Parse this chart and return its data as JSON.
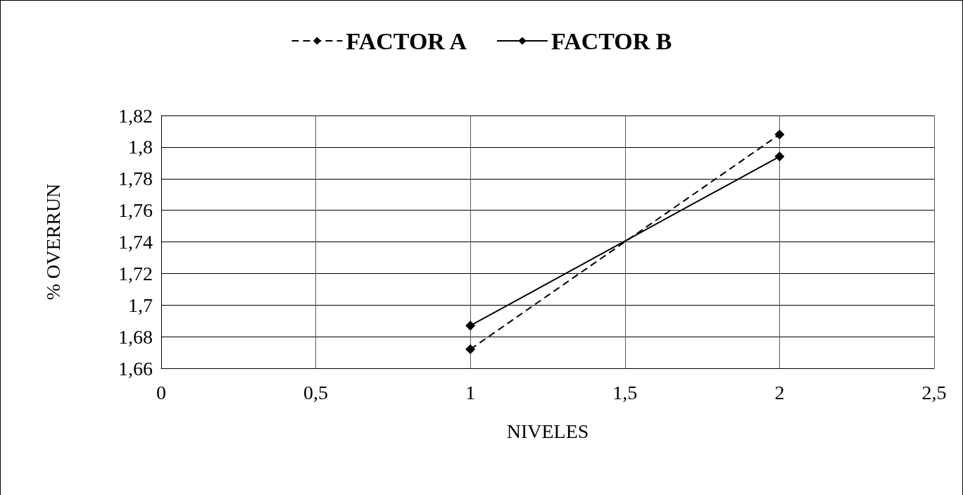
{
  "chart_data": {
    "type": "line",
    "xlabel": "NIVELES",
    "ylabel": "% OVERRUN",
    "x": [
      1,
      2
    ],
    "series": [
      {
        "name": "FACTOR A",
        "color": "#000000",
        "values": [
          1.672,
          1.808
        ],
        "line_style": "dashed"
      },
      {
        "name": "FACTOR B",
        "color": "#000000",
        "values": [
          1.687,
          1.794
        ],
        "line_style": "solid"
      }
    ],
    "xlim": [
      0,
      2.5
    ],
    "xticks": [
      0,
      {
        "value": 0.5,
        "label": "0,5"
      },
      1,
      {
        "value": 1.5,
        "label": "1,5"
      },
      2,
      {
        "value": 2.5,
        "label": "2,5"
      }
    ],
    "ylim": [
      1.66,
      1.82
    ],
    "yticks": [
      {
        "value": 1.66,
        "label": "1,66"
      },
      {
        "value": 1.68,
        "label": "1,68"
      },
      {
        "value": 1.7,
        "label": "1,7"
      },
      {
        "value": 1.72,
        "label": "1,72"
      },
      {
        "value": 1.74,
        "label": "1,74"
      },
      {
        "value": 1.76,
        "label": "1,76"
      },
      {
        "value": 1.78,
        "label": "1,78"
      },
      {
        "value": 1.8,
        "label": "1,8"
      },
      {
        "value": 1.82,
        "label": "1,82"
      }
    ],
    "grid": true,
    "legend": "top",
    "marker": "diamond"
  }
}
